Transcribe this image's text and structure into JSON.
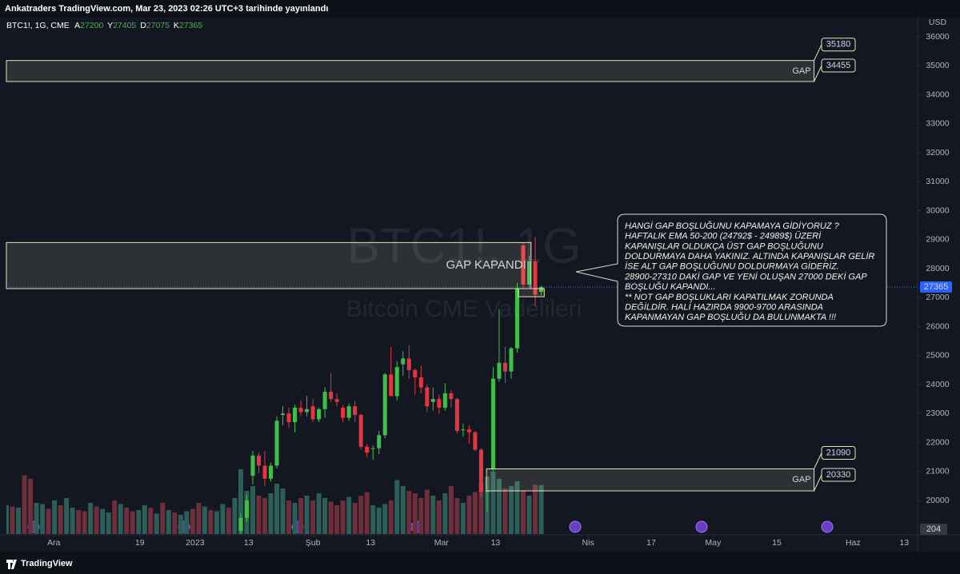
{
  "header": "Ankatraders TradingView.com, Mar 23, 2023 02:26 UTC+3 tarihinde yayınlandı",
  "footer": "TradingView",
  "chart_data": {
    "type": "candlestick",
    "symbol": "BTC1!, 1G, CME",
    "ohlc_labels": [
      "A",
      "Y",
      "D",
      "K"
    ],
    "currency": "USD",
    "watermark": [
      "BTC1!, 1G",
      "Bitcoin CME Vadelileri"
    ],
    "xlim": [
      0,
      151.5
    ],
    "xticks": [
      {
        "value": 7.9,
        "label": "Ara"
      },
      {
        "value": 22.2,
        "label": "19"
      },
      {
        "value": 31.4,
        "label": "2023"
      },
      {
        "value": 40.3,
        "label": "13"
      },
      {
        "value": 51,
        "label": "Şub"
      },
      {
        "value": 60.6,
        "label": "13"
      },
      {
        "value": 72.4,
        "label": "Mar"
      },
      {
        "value": 81.4,
        "label": "13"
      },
      {
        "value": 96.8,
        "label": "Nis"
      },
      {
        "value": 107.3,
        "label": "17"
      },
      {
        "value": 117.6,
        "label": "May"
      },
      {
        "value": 128.2,
        "label": "15"
      },
      {
        "value": 140.9,
        "label": "Haz"
      },
      {
        "value": 149.4,
        "label": "13"
      }
    ],
    "ylim": [
      18841,
      36662
    ],
    "yticks": [
      20000,
      21000,
      22000,
      23000,
      24000,
      25000,
      26000,
      27000,
      28000,
      29000,
      30000,
      31000,
      32000,
      33000,
      34000,
      35000,
      36000
    ],
    "grid": false,
    "up_color": "#3fbf4a",
    "down_color": "#e8343f",
    "volume_up_color": "#2b5f58",
    "volume_down_color": "#6e2e3c",
    "x": [
      0,
      1,
      2,
      3,
      4,
      5,
      6,
      7,
      8,
      9,
      10,
      11,
      12,
      13,
      14,
      15,
      16,
      17,
      18,
      19,
      20,
      21,
      22,
      23,
      24,
      25,
      26,
      27,
      28,
      29,
      30,
      31,
      32,
      33,
      34,
      35,
      36,
      37,
      38,
      39,
      40,
      41,
      42,
      43,
      44,
      45,
      46,
      47,
      48,
      49,
      50,
      51,
      52,
      53,
      54,
      55,
      56,
      57,
      58,
      59,
      60,
      61,
      62,
      63,
      64,
      65,
      66,
      67,
      68,
      69,
      70,
      71,
      72,
      73,
      74,
      75,
      76,
      77,
      78,
      79,
      80,
      81,
      82,
      83,
      84,
      85,
      86,
      87,
      88,
      89
    ],
    "open": [
      null,
      null,
      null,
      null,
      null,
      null,
      null,
      null,
      null,
      null,
      null,
      null,
      null,
      null,
      null,
      null,
      null,
      null,
      null,
      null,
      null,
      null,
      null,
      null,
      null,
      null,
      null,
      null,
      null,
      null,
      null,
      null,
      null,
      null,
      null,
      null,
      null,
      null,
      null,
      18950,
      19400,
      20850,
      21550,
      21200,
      20750,
      21200,
      22950,
      23000,
      22700,
      23200,
      23050,
      23250,
      22800,
      23150,
      23750,
      23500,
      23200,
      22850,
      23250,
      22950,
      21850,
      21800,
      21800,
      22250,
      24350,
      23600,
      24700,
      24900,
      24500,
      24250,
      23900,
      23400,
      23500,
      23200,
      23700,
      23500,
      22450,
      22450,
      22350,
      21750,
      20300,
      21090,
      24200,
      24750,
      24450,
      25250,
      28800,
      27450,
      28250,
      27200
    ],
    "high": [
      null,
      null,
      null,
      null,
      null,
      null,
      null,
      null,
      null,
      null,
      null,
      null,
      null,
      null,
      null,
      null,
      null,
      null,
      null,
      null,
      null,
      null,
      null,
      null,
      null,
      null,
      null,
      null,
      null,
      null,
      null,
      null,
      null,
      null,
      null,
      null,
      null,
      null,
      null,
      19550,
      20200,
      21700,
      21650,
      21700,
      21300,
      22900,
      23250,
      23200,
      23300,
      23450,
      23600,
      23500,
      23200,
      23900,
      24400,
      23700,
      23300,
      23350,
      23450,
      23000,
      21950,
      21900,
      22400,
      24400,
      25300,
      24800,
      25150,
      25350,
      24550,
      24650,
      24000,
      23900,
      23650,
      24050,
      23800,
      23550,
      22650,
      22600,
      22400,
      21800,
      20350,
      24600,
      26600,
      25300,
      25300,
      27500,
      28900,
      28450,
      29100,
      27405
    ],
    "low": [
      null,
      null,
      null,
      null,
      null,
      null,
      null,
      null,
      null,
      null,
      null,
      null,
      null,
      null,
      null,
      null,
      null,
      null,
      null,
      null,
      null,
      null,
      null,
      null,
      null,
      null,
      null,
      null,
      null,
      null,
      null,
      null,
      null,
      null,
      null,
      null,
      null,
      null,
      null,
      18800,
      19250,
      20550,
      20950,
      20500,
      20650,
      21100,
      22600,
      22500,
      22350,
      22900,
      22900,
      22700,
      22700,
      22850,
      23400,
      23250,
      22700,
      22750,
      22700,
      21750,
      21500,
      21400,
      21600,
      22150,
      23600,
      23450,
      24300,
      24200,
      23650,
      23700,
      23050,
      23100,
      23000,
      23100,
      23200,
      22300,
      22200,
      21950,
      21700,
      20100,
      19600,
      21000,
      24100,
      24050,
      24200,
      25100,
      27300,
      27350,
      26700,
      27075
    ],
    "close": [
      null,
      null,
      null,
      null,
      null,
      null,
      null,
      null,
      null,
      null,
      null,
      null,
      null,
      null,
      null,
      null,
      null,
      null,
      null,
      null,
      null,
      null,
      null,
      null,
      null,
      null,
      null,
      null,
      null,
      null,
      null,
      null,
      null,
      null,
      null,
      null,
      null,
      null,
      null,
      19400,
      20000,
      21550,
      21200,
      20750,
      21200,
      22750,
      23000,
      22700,
      23200,
      23050,
      23150,
      22800,
      23150,
      23750,
      23500,
      23400,
      22850,
      23250,
      22950,
      21850,
      21650,
      21800,
      22250,
      24350,
      23600,
      24600,
      24900,
      24500,
      24250,
      23900,
      23250,
      23500,
      23200,
      23700,
      23500,
      22400,
      22450,
      22350,
      21750,
      20300,
      20330,
      24200,
      24750,
      24450,
      25250,
      27310,
      27450,
      28250,
      27100,
      27365
    ],
    "volume": [
      120,
      115,
      110,
      245,
      230,
      130,
      125,
      105,
      140,
      120,
      150,
      110,
      100,
      95,
      130,
      115,
      105,
      90,
      140,
      125,
      110,
      95,
      100,
      120,
      110,
      85,
      130,
      100,
      90,
      80,
      95,
      105,
      130,
      115,
      100,
      95,
      125,
      110,
      150,
      270,
      180,
      200,
      160,
      150,
      170,
      210,
      190,
      140,
      130,
      150,
      160,
      140,
      170,
      150,
      135,
      120,
      140,
      155,
      130,
      160,
      175,
      120,
      110,
      125,
      140,
      225,
      200,
      180,
      170,
      150,
      185,
      160,
      140,
      170,
      200,
      150,
      130,
      160,
      175,
      210,
      240,
      260,
      230,
      190,
      200,
      220,
      180,
      160,
      205,
      204
    ],
    "volume_up": [
      true,
      false,
      true,
      false,
      false,
      true,
      true,
      false,
      true,
      false,
      true,
      true,
      false,
      false,
      true,
      false,
      true,
      true,
      false,
      true,
      false,
      false,
      true,
      true,
      false,
      true,
      false,
      true,
      false,
      true,
      true,
      false,
      false,
      true,
      false,
      true,
      true,
      false,
      true,
      true,
      true,
      true,
      false,
      false,
      true,
      true,
      true,
      false,
      true,
      false,
      true,
      false,
      true,
      true,
      false,
      false,
      false,
      true,
      false,
      false,
      false,
      true,
      true,
      true,
      false,
      true,
      true,
      false,
      false,
      false,
      false,
      true,
      false,
      true,
      false,
      false,
      true,
      false,
      false,
      false,
      true,
      true,
      true,
      false,
      true,
      true,
      false,
      true,
      false,
      true
    ],
    "zones": [
      {
        "label": "GAP",
        "high": 35180,
        "low": 34455,
        "x_range": [
          0,
          134.4
        ],
        "callouts": true
      },
      {
        "label": "GAP KAPANDI",
        "high": 28900,
        "low": 27310,
        "x_range": [
          0,
          87.3
        ],
        "callouts": false
      },
      {
        "label": "GAP",
        "high": 21090,
        "low": 20330,
        "x_range": [
          79.9,
          134.4
        ],
        "callouts": true
      },
      {
        "high": 27310,
        "low": 27030,
        "x_range": [
          85.2,
          89.5
        ],
        "callouts": false
      }
    ],
    "note": [
      "HANGİ GAP BOŞLUĞUNU KAPAMAYA GİDİYORUZ ?",
      "HAFTALIK EMA 50-200 (24792$ - 24989$) ÜZERİ",
      "KAPANIŞLAR OLDUKÇA ÜST GAP BOŞLUĞUNU",
      "DOLDURMAYA DAHA YAKINIZ. ALTINDA KAPANIŞLAR GELİR",
      "İSE ALT GAP BOŞLUĞUNU DOLDURMAYA GİDERİZ.",
      "28900-27310 DAKİ GAP VE YENİ OLUŞAN 27000 DEKİ GAP",
      "BOŞLUĞU KAPANDI...",
      "** NOT GAP BOŞLUKLARI KAPATILMAK ZORUNDA",
      "DEĞİLDİR. HALİ HAZIRDA 9900-9700 ARASINDA",
      "KAPANMAYAN GAP BOŞLUĞU DA BULUNMAKTA !!!"
    ]
  }
}
